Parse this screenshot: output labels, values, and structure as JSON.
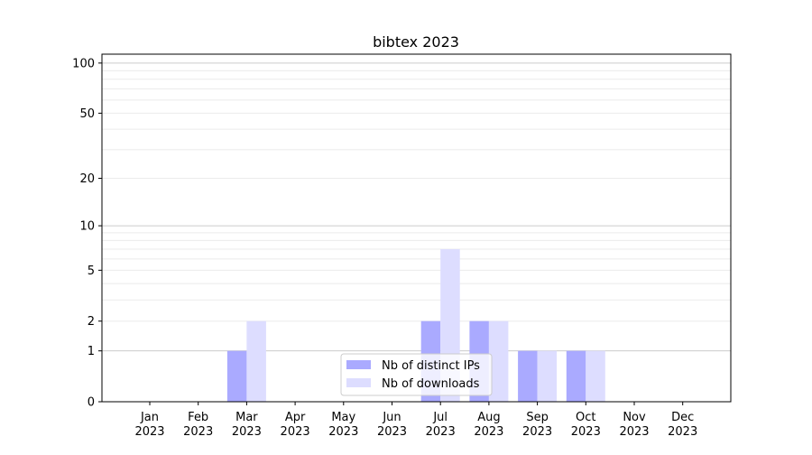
{
  "chart_data": {
    "type": "bar",
    "title": "bibtex 2023",
    "xlabel": "",
    "ylabel": "",
    "y_scale": "log(1+y)",
    "ylim": [
      0,
      113
    ],
    "yticks": [
      0,
      1,
      2,
      5,
      10,
      20,
      50,
      100
    ],
    "grid": "horizontal, major at 1/10/100, minor at 2-9 and 20-90",
    "legend_placement": "lower center",
    "categories": [
      "Jan\n2023",
      "Feb\n2023",
      "Mar\n2023",
      "Apr\n2023",
      "May\n2023",
      "Jun\n2023",
      "Jul\n2023",
      "Aug\n2023",
      "Sep\n2023",
      "Oct\n2023",
      "Nov\n2023",
      "Dec\n2023"
    ],
    "series": [
      {
        "name": "Nb of distinct IPs",
        "color": "#aaaaff",
        "values": [
          0,
          0,
          1,
          0,
          0,
          0,
          2,
          2,
          1,
          1,
          0,
          0
        ]
      },
      {
        "name": "Nb of downloads",
        "color": "#ddddff",
        "values": [
          0,
          0,
          2,
          0,
          0,
          0,
          7,
          2,
          1,
          1,
          0,
          0
        ]
      }
    ]
  }
}
